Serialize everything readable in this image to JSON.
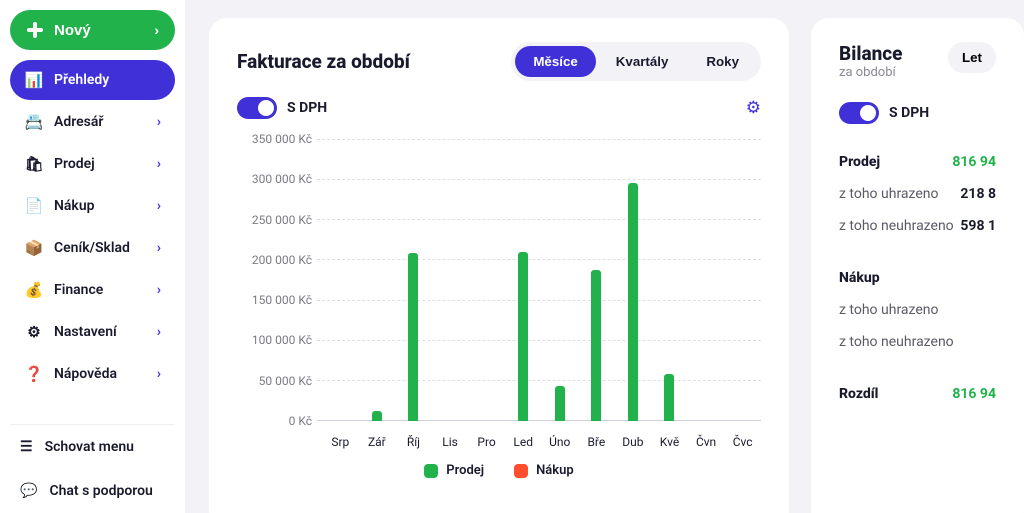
{
  "sidebar": {
    "new_label": "Nový",
    "items": [
      {
        "label": "Přehledy",
        "icon": "📊",
        "active": true
      },
      {
        "label": "Adresář",
        "icon": "📇",
        "active": false
      },
      {
        "label": "Prodej",
        "icon": "🛍",
        "active": false
      },
      {
        "label": "Nákup",
        "icon": "📄",
        "active": false
      },
      {
        "label": "Ceník/Sklad",
        "icon": "📦",
        "active": false
      },
      {
        "label": "Finance",
        "icon": "💰",
        "active": false
      },
      {
        "label": "Nastavení",
        "icon": "⚙",
        "active": false
      },
      {
        "label": "Nápověda",
        "icon": "❓",
        "active": false
      }
    ],
    "footer": {
      "hide_menu": "Schovat menu",
      "chat": "Chat s podporou"
    }
  },
  "chart_panel": {
    "title": "Fakturace za období",
    "tabs": {
      "months": "Měsíce",
      "quarters": "Kvartály",
      "years": "Roky"
    },
    "vat_toggle": "S DPH",
    "chart": {
      "type": "bar",
      "currency_suffix": " Kč",
      "y_ticks": [
        350000,
        300000,
        250000,
        200000,
        150000,
        100000,
        50000,
        0
      ],
      "y_tick_labels": [
        "350 000 Kč",
        "300 000 Kč",
        "250 000 Kč",
        "200 000 Kč",
        "150 000 Kč",
        "100 000 Kč",
        "50 000 Kč",
        "0 Kč"
      ],
      "y_max": 350000,
      "categories": [
        "Srp",
        "Zář",
        "Říj",
        "Lis",
        "Pro",
        "Led",
        "Úno",
        "Bře",
        "Dub",
        "Kvě",
        "Čvn",
        "Čvc"
      ],
      "values": [
        0,
        13000,
        208000,
        0,
        0,
        210000,
        44000,
        188000,
        295000,
        58000,
        0,
        0
      ],
      "bar_color": "#21b24b",
      "grid_color": "#dedee5",
      "background": "#ffffff",
      "legend": [
        {
          "label": "Prodej",
          "color": "#21b24b"
        },
        {
          "label": "Nákup",
          "color": "#ff4d2e"
        }
      ]
    }
  },
  "balance_panel": {
    "title": "Bilance",
    "subtitle": "za období",
    "let_btn": "Let",
    "vat_toggle": "S DPH",
    "rows": {
      "prodej_label": "Prodej",
      "prodej_value": "816 94",
      "uhrazeno_label": "z toho uhrazeno",
      "uhrazeno_value": "218 8",
      "neuhrazeno_label": "z toho neuhrazeno",
      "neuhrazeno_value": "598 1",
      "nakup_label": "Nákup",
      "nakup_uhrazeno": "z toho uhrazeno",
      "nakup_neuhrazeno": "z toho neuhrazeno",
      "rozdil_label": "Rozdíl",
      "rozdil_value": "816 94"
    }
  },
  "colors": {
    "accent_green": "#21b24b",
    "accent_purple": "#4030d8",
    "accent_orange": "#ff4d2e",
    "bg": "#f2f2f7"
  }
}
